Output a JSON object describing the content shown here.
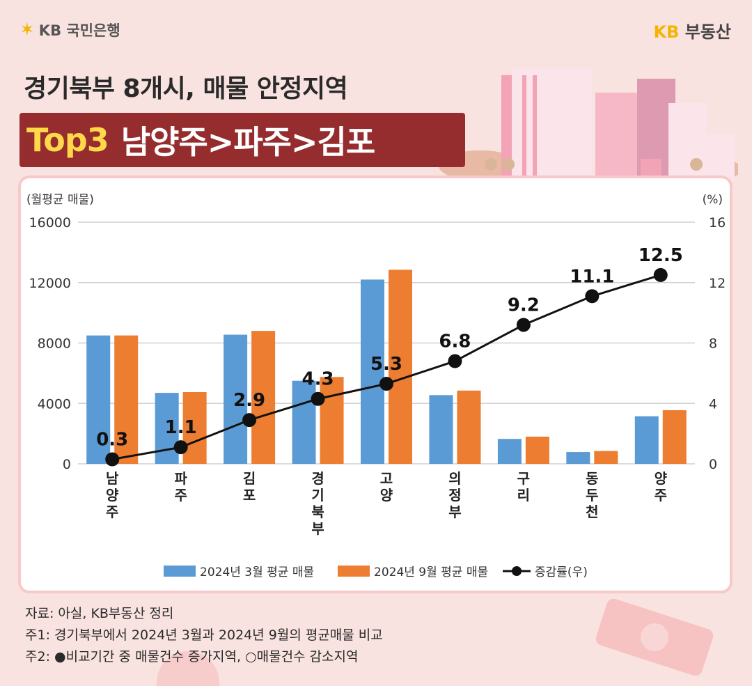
{
  "header": {
    "bank_logo_text": "KB 국민은행",
    "brand_kb": "KB",
    "brand_name": "부동산"
  },
  "title": {
    "line1": "경기북부 8개시, 매물 안정지역",
    "highlight": "Top3",
    "line2": "남양주>파주>김포"
  },
  "chart_data": {
    "type": "bar",
    "categories": [
      "남양주",
      "파주",
      "김포",
      "경기북부",
      "고양",
      "의정부",
      "구리",
      "동두천",
      "양주"
    ],
    "series": [
      {
        "name": "2024년 3월 평균 매물",
        "type": "bar",
        "color": "#5b9bd5",
        "axis": "left",
        "values": [
          8500,
          4700,
          8550,
          5500,
          12200,
          4550,
          1650,
          780,
          3150
        ]
      },
      {
        "name": "2024년 9월 평균 매물",
        "type": "bar",
        "color": "#ed7d31",
        "axis": "left",
        "values": [
          8500,
          4750,
          8800,
          5750,
          12850,
          4850,
          1800,
          850,
          3550
        ]
      },
      {
        "name": "증감률(우)",
        "type": "line",
        "color": "#111111",
        "axis": "right",
        "values": [
          0.3,
          1.1,
          2.9,
          4.3,
          5.3,
          6.8,
          9.2,
          11.1,
          12.5
        ],
        "labels": [
          "0.3",
          "1.1",
          "2.9",
          "4.3",
          "5.3",
          "6.8",
          "9.2",
          "11.1",
          "12.5"
        ]
      }
    ],
    "ylabel_left": "(월평균 매물)",
    "ylabel_right": "(%)",
    "ylim_left": [
      0,
      16000
    ],
    "ylim_right": [
      0,
      16
    ],
    "yticks_left": [
      "0",
      "4000",
      "8000",
      "12000",
      "16000"
    ],
    "yticks_right": [
      "0",
      "4",
      "8",
      "12",
      "16"
    ],
    "grid": true,
    "legend_position": "bottom"
  },
  "notes": {
    "source": "자료: 아실, KB부동산 정리",
    "note1": "주1: 경기북부에서 2024년 3월과 2024년 9월의 평균매물 비교",
    "note2": "주2: ●비교기간 중 매물건수 증가지역, ○매물건수 감소지역"
  }
}
